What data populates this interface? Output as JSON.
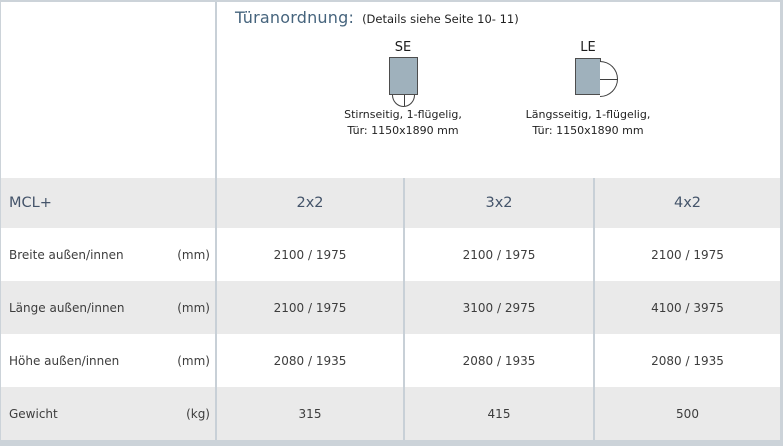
{
  "panel": {
    "title": "Türanordnung:",
    "note": "(Details siehe Seite 10- 11)"
  },
  "diagrams": [
    {
      "code": "SE",
      "desc_line1": "Stirnseitig, 1-flügelig,",
      "desc_line2": "Tür: 1150x1890 mm"
    },
    {
      "code": "LE",
      "desc_line1": "Längsseitig, 1-flügelig,",
      "desc_line2": "Tür: 1150x1890 mm"
    }
  ],
  "table": {
    "product_label": "MCL+",
    "size_columns": [
      "2x2",
      "3x2",
      "4x2"
    ],
    "rows": [
      {
        "label": "Breite außen/innen",
        "unit": "(mm)",
        "values": [
          "2100 / 1975",
          "2100 / 1975",
          "2100 / 1975"
        ]
      },
      {
        "label": "Länge außen/innen",
        "unit": "(mm)",
        "values": [
          "2100 / 1975",
          "3100 / 2975",
          "4100 / 3975"
        ]
      },
      {
        "label": "Höhe außen/innen",
        "unit": "(mm)",
        "values": [
          "2080 / 1935",
          "2080 / 1935",
          "2080 / 1935"
        ]
      },
      {
        "label": "Gewicht",
        "unit": "(kg)",
        "values": [
          "315",
          "415",
          "500"
        ]
      }
    ]
  },
  "colors": {
    "frame_border": "#ccd3d9",
    "inner_border": "#c8d0d7",
    "row_shade": "#eaeaea",
    "title_text": "#46647d",
    "header_text": "#44546a",
    "body_text": "#3d3d3d",
    "door_fill": "#9fb1bc",
    "door_outline": "#4d4d4d"
  }
}
